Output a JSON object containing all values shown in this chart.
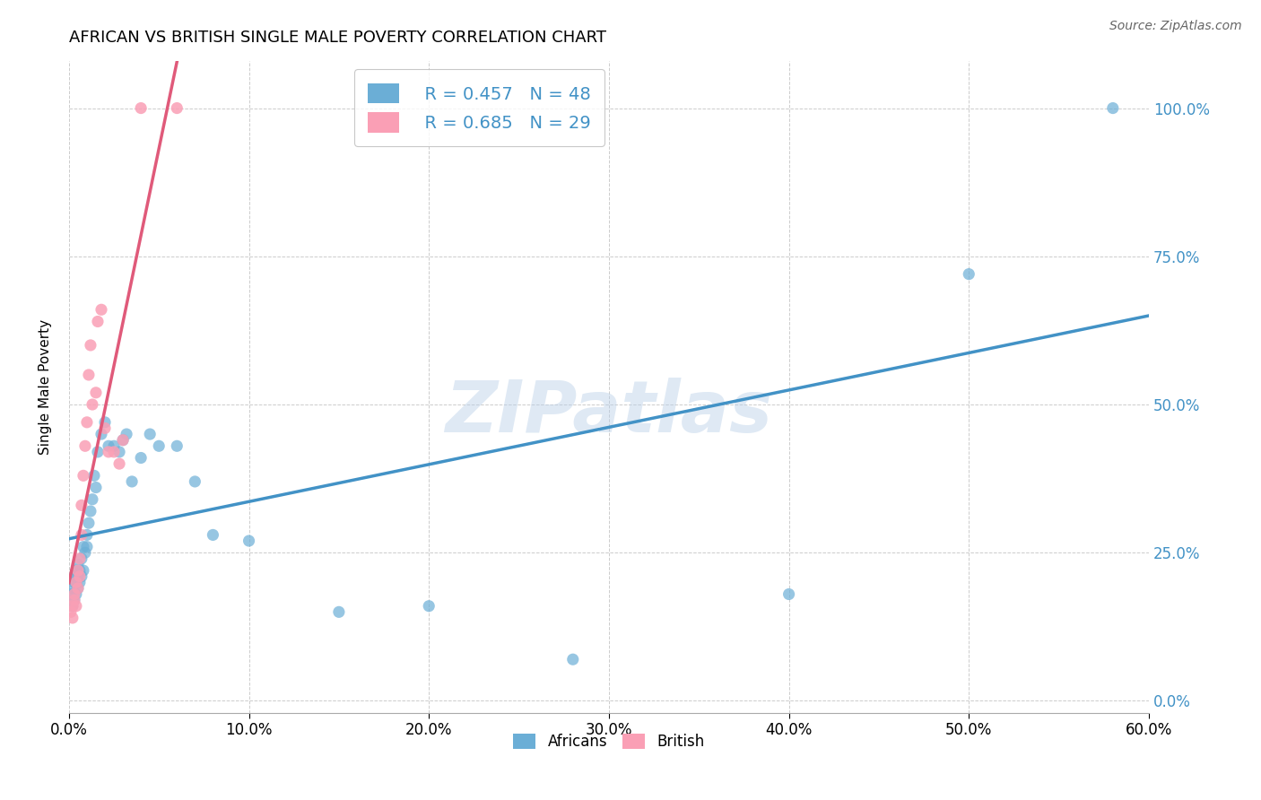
{
  "title": "AFRICAN VS BRITISH SINGLE MALE POVERTY CORRELATION CHART",
  "source": "Source: ZipAtlas.com",
  "ylabel": "Single Male Poverty",
  "xlim": [
    0.0,
    0.6
  ],
  "ylim": [
    -0.02,
    1.08
  ],
  "africans_color": "#6baed6",
  "british_color": "#fa9fb5",
  "regression_african_color": "#4292c6",
  "regression_british_color": "#e05a7a",
  "watermark": "ZIPatlas",
  "legend_r_african": "R = 0.457",
  "legend_n_african": "N = 48",
  "legend_r_british": "R = 0.685",
  "legend_n_british": "N = 29",
  "africans_x": [
    0.001,
    0.002,
    0.002,
    0.003,
    0.003,
    0.003,
    0.004,
    0.004,
    0.004,
    0.005,
    0.005,
    0.005,
    0.006,
    0.006,
    0.007,
    0.007,
    0.008,
    0.008,
    0.009,
    0.01,
    0.01,
    0.011,
    0.012,
    0.013,
    0.014,
    0.015,
    0.016,
    0.018,
    0.02,
    0.022,
    0.025,
    0.028,
    0.03,
    0.032,
    0.035,
    0.04,
    0.045,
    0.05,
    0.06,
    0.07,
    0.08,
    0.1,
    0.15,
    0.2,
    0.28,
    0.4,
    0.5,
    0.58
  ],
  "africans_y": [
    0.18,
    0.16,
    0.19,
    0.17,
    0.2,
    0.21,
    0.18,
    0.2,
    0.22,
    0.19,
    0.21,
    0.23,
    0.2,
    0.22,
    0.21,
    0.24,
    0.22,
    0.26,
    0.25,
    0.28,
    0.26,
    0.3,
    0.32,
    0.34,
    0.38,
    0.36,
    0.42,
    0.45,
    0.47,
    0.43,
    0.43,
    0.42,
    0.44,
    0.45,
    0.37,
    0.41,
    0.45,
    0.43,
    0.43,
    0.37,
    0.28,
    0.27,
    0.15,
    0.16,
    0.07,
    0.18,
    0.72,
    1.0
  ],
  "british_x": [
    0.001,
    0.002,
    0.002,
    0.003,
    0.003,
    0.004,
    0.004,
    0.005,
    0.005,
    0.006,
    0.006,
    0.007,
    0.007,
    0.008,
    0.009,
    0.01,
    0.011,
    0.012,
    0.013,
    0.015,
    0.016,
    0.018,
    0.02,
    0.022,
    0.025,
    0.028,
    0.03,
    0.04,
    0.06
  ],
  "british_y": [
    0.15,
    0.14,
    0.16,
    0.17,
    0.18,
    0.2,
    0.16,
    0.22,
    0.19,
    0.21,
    0.24,
    0.28,
    0.33,
    0.38,
    0.43,
    0.47,
    0.55,
    0.6,
    0.5,
    0.52,
    0.64,
    0.66,
    0.46,
    0.42,
    0.42,
    0.4,
    0.44,
    1.0,
    1.0
  ]
}
